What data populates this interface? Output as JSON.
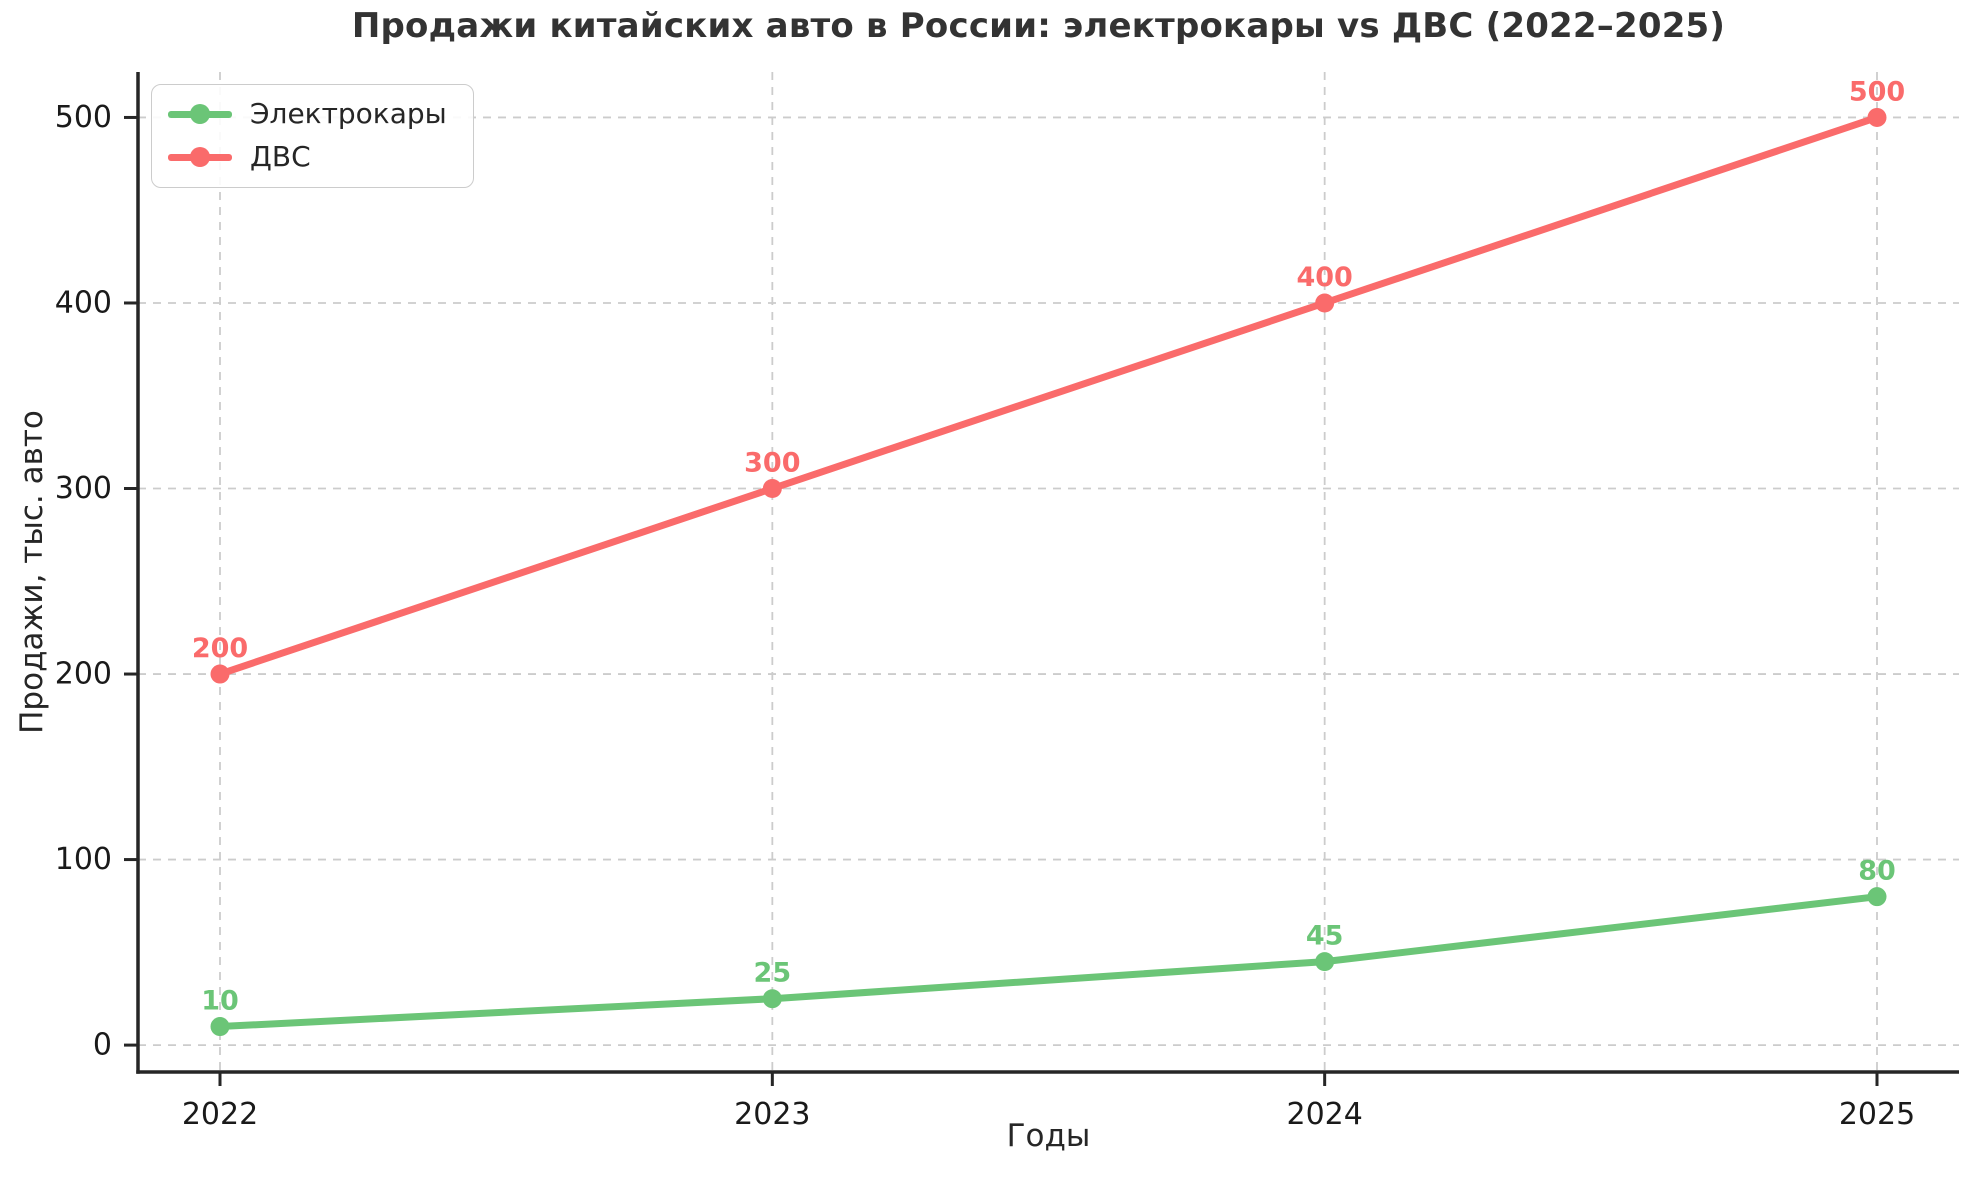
{
  "title": "Продажи китайских авто в России: электрокары vs ДВС (2022–2025)",
  "chart_data": {
    "type": "line",
    "title": "Продажи китайских авто в России: электрокары vs ДВС (2022–2025)",
    "x": [
      "2022",
      "2023",
      "2024",
      "2025"
    ],
    "series": [
      {
        "name": "Электрокары",
        "values": [
          10,
          25,
          45,
          80
        ],
        "color": "#6bc577"
      },
      {
        "name": "ДВС",
        "values": [
          200,
          300,
          400,
          500
        ],
        "color": "#fa6b6b"
      }
    ],
    "xlabel": "Годы",
    "ylabel": "Продажи, тыс. авто",
    "yticks": [
      0,
      100,
      200,
      300,
      400,
      500
    ],
    "ylim": [
      -14.5,
      524.5
    ],
    "grid": true,
    "grid_style": "dashed",
    "grid_color": "#cccccc",
    "legend_position": "upper-left",
    "data_labels": true,
    "text_color": "#262626",
    "spine_color": "#262626"
  }
}
